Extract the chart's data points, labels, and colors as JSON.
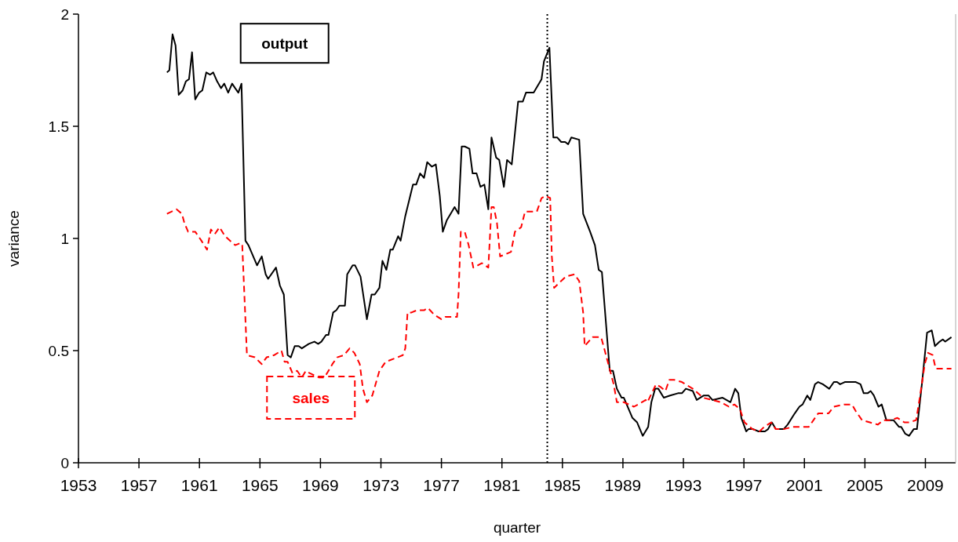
{
  "chart_data": {
    "type": "line",
    "xlabel": "quarter",
    "ylabel": "variance",
    "xlim": [
      1953,
      2011
    ],
    "xticks": [
      1953,
      1957,
      1961,
      1965,
      1969,
      1973,
      1977,
      1981,
      1985,
      1989,
      1993,
      1997,
      2001,
      2005,
      2009
    ],
    "ylim": [
      0,
      2
    ],
    "yticks": [
      0,
      {
        "value": 0.5,
        "label": "0.5"
      },
      1,
      {
        "value": 1.5,
        "label": "1.5"
      },
      2
    ],
    "grid": false,
    "marker": "none",
    "ref_lines": [
      {
        "axis": "x",
        "value": 1984,
        "color": "#000000",
        "line_style": "dotted"
      }
    ],
    "series": [
      {
        "name": "output",
        "color": "#000000",
        "line_style": "solid",
        "x": [
          1958.85,
          1959.01,
          1959.22,
          1959.42,
          1959.63,
          1959.89,
          1960.1,
          1960.31,
          1960.51,
          1960.72,
          1960.98,
          1961.19,
          1961.45,
          1961.7,
          1961.91,
          1962.17,
          1962.43,
          1962.64,
          1962.9,
          1963.16,
          1963.36,
          1963.57,
          1963.78,
          1964.04,
          1964.24,
          1964.81,
          1965.12,
          1965.38,
          1965.54,
          1966.06,
          1966.32,
          1966.58,
          1966.83,
          1967.04,
          1967.3,
          1967.56,
          1967.77,
          1968.23,
          1968.6,
          1968.85,
          1969.06,
          1969.37,
          1969.53,
          1969.84,
          1970.05,
          1970.25,
          1970.62,
          1970.77,
          1971.13,
          1971.29,
          1971.65,
          1972.07,
          1972.38,
          1972.59,
          1972.9,
          1973.1,
          1973.36,
          1973.62,
          1973.78,
          1974.14,
          1974.3,
          1974.61,
          1975.12,
          1975.33,
          1975.59,
          1975.85,
          1976.06,
          1976.37,
          1976.63,
          1976.89,
          1977.09,
          1977.35,
          1977.87,
          1978.13,
          1978.34,
          1978.54,
          1978.85,
          1979.06,
          1979.32,
          1979.58,
          1979.84,
          1980.1,
          1980.31,
          1980.62,
          1980.82,
          1981.13,
          1981.34,
          1981.65,
          1982.07,
          1982.38,
          1982.59,
          1983.1,
          1983.62,
          1983.78,
          1984.14,
          1984.4,
          1984.66,
          1984.92,
          1985.18,
          1985.38,
          1985.59,
          1986.11,
          1986.37,
          1986.83,
          1987.15,
          1987.4,
          1987.61,
          1988.13,
          1988.34,
          1988.6,
          1988.91,
          1989.06,
          1989.63,
          1989.94,
          1990.31,
          1990.67,
          1990.88,
          1991.13,
          1991.34,
          1991.7,
          1992.12,
          1992.64,
          1992.9,
          1993.16,
          1993.62,
          1993.88,
          1994.35,
          1994.66,
          1994.92,
          1995.59,
          1996.11,
          1996.42,
          1996.63,
          1996.83,
          1997.15,
          1997.3,
          1997.61,
          1997.97,
          1998.39,
          1998.6,
          1998.85,
          1999.11,
          1999.63,
          1999.89,
          2000.36,
          2000.67,
          2000.88,
          2001.19,
          2001.39,
          2001.7,
          2001.91,
          2002.22,
          2002.64,
          2002.95,
          2003.16,
          2003.36,
          2003.67,
          2004.4,
          2004.71,
          2004.92,
          2005.18,
          2005.38,
          2005.59,
          2005.9,
          2006.11,
          2006.42,
          2006.89,
          2007.25,
          2007.4,
          2007.66,
          2007.92,
          2008.23,
          2008.44,
          2008.8,
          2009.11,
          2009.42,
          2009.63,
          2009.94,
          2010.15,
          2010.31,
          2010.72
        ],
        "values": [
          1.74,
          1.75,
          1.91,
          1.86,
          1.64,
          1.66,
          1.7,
          1.71,
          1.83,
          1.62,
          1.65,
          1.66,
          1.74,
          1.73,
          1.74,
          1.7,
          1.67,
          1.69,
          1.65,
          1.69,
          1.67,
          1.65,
          1.69,
          0.99,
          0.97,
          0.88,
          0.92,
          0.84,
          0.82,
          0.87,
          0.79,
          0.75,
          0.48,
          0.47,
          0.52,
          0.52,
          0.51,
          0.53,
          0.54,
          0.53,
          0.54,
          0.57,
          0.57,
          0.67,
          0.68,
          0.7,
          0.7,
          0.84,
          0.88,
          0.88,
          0.83,
          0.64,
          0.75,
          0.75,
          0.78,
          0.9,
          0.86,
          0.95,
          0.95,
          1.01,
          0.99,
          1.1,
          1.24,
          1.24,
          1.29,
          1.27,
          1.34,
          1.32,
          1.33,
          1.19,
          1.03,
          1.08,
          1.14,
          1.11,
          1.41,
          1.41,
          1.4,
          1.29,
          1.29,
          1.23,
          1.24,
          1.13,
          1.45,
          1.36,
          1.35,
          1.23,
          1.35,
          1.33,
          1.61,
          1.61,
          1.65,
          1.65,
          1.71,
          1.79,
          1.85,
          1.45,
          1.45,
          1.43,
          1.43,
          1.42,
          1.45,
          1.44,
          1.11,
          1.03,
          0.97,
          0.86,
          0.85,
          0.41,
          0.41,
          0.33,
          0.29,
          0.29,
          0.2,
          0.18,
          0.12,
          0.16,
          0.27,
          0.33,
          0.33,
          0.29,
          0.3,
          0.31,
          0.31,
          0.33,
          0.32,
          0.28,
          0.3,
          0.3,
          0.28,
          0.29,
          0.27,
          0.33,
          0.31,
          0.2,
          0.14,
          0.15,
          0.15,
          0.14,
          0.14,
          0.15,
          0.18,
          0.15,
          0.15,
          0.17,
          0.22,
          0.25,
          0.26,
          0.3,
          0.28,
          0.35,
          0.36,
          0.35,
          0.33,
          0.36,
          0.36,
          0.35,
          0.36,
          0.36,
          0.35,
          0.31,
          0.31,
          0.32,
          0.3,
          0.25,
          0.26,
          0.19,
          0.19,
          0.16,
          0.16,
          0.13,
          0.12,
          0.15,
          0.15,
          0.37,
          0.58,
          0.59,
          0.52,
          0.54,
          0.55,
          0.54,
          0.56
        ]
      },
      {
        "name": "sales",
        "color": "#ff0000",
        "line_style": "dashed",
        "x": [
          1958.85,
          1959.48,
          1959.84,
          1960.0,
          1960.25,
          1960.72,
          1961.13,
          1961.5,
          1961.76,
          1962.02,
          1962.33,
          1962.69,
          1963.36,
          1963.73,
          1963.83,
          1964.14,
          1964.66,
          1965.12,
          1965.44,
          1965.95,
          1966.42,
          1966.63,
          1966.83,
          1967.15,
          1967.46,
          1967.77,
          1968.03,
          1968.28,
          1968.91,
          1969.27,
          1969.79,
          1970.1,
          1970.56,
          1970.93,
          1971.24,
          1971.6,
          1971.81,
          1972.07,
          1972.43,
          1972.9,
          1973.31,
          1974.09,
          1974.45,
          1974.61,
          1974.76,
          1975.02,
          1975.38,
          1975.85,
          1976.11,
          1976.52,
          1976.99,
          1977.25,
          1978.03,
          1978.13,
          1978.28,
          1978.54,
          1978.8,
          1979.11,
          1979.68,
          1980.1,
          1980.31,
          1980.46,
          1980.67,
          1980.88,
          1981.6,
          1981.86,
          1982.27,
          1982.53,
          1983.31,
          1983.62,
          1983.88,
          1984.19,
          1984.3,
          1984.45,
          1984.76,
          1985.23,
          1985.8,
          1986.11,
          1986.37,
          1986.47,
          1986.99,
          1987.56,
          1987.92,
          1988.39,
          1988.6,
          1989.06,
          1989.73,
          1990.51,
          1990.62,
          1991.19,
          1991.45,
          1991.81,
          1992.07,
          1992.38,
          1992.9,
          1993.62,
          1994.3,
          1994.92,
          1995.49,
          1996.01,
          1996.37,
          1996.73,
          1997.04,
          1997.56,
          1998.03,
          1998.34,
          1998.8,
          1999.11,
          1999.63,
          2000.25,
          2001.29,
          2001.91,
          2002.59,
          2002.95,
          2003.62,
          2004.14,
          2004.4,
          2004.81,
          2005.33,
          2005.85,
          2006.21,
          2006.73,
          2007.15,
          2007.61,
          2007.92,
          2008.39,
          2008.65,
          2008.96,
          2009.17,
          2009.48,
          2009.68,
          2010.72
        ],
        "values": [
          1.11,
          1.13,
          1.11,
          1.07,
          1.03,
          1.03,
          0.99,
          0.95,
          1.04,
          1.02,
          1.05,
          1.01,
          0.97,
          0.98,
          0.97,
          0.48,
          0.47,
          0.44,
          0.47,
          0.48,
          0.5,
          0.45,
          0.45,
          0.4,
          0.41,
          0.38,
          0.41,
          0.4,
          0.38,
          0.38,
          0.44,
          0.47,
          0.48,
          0.51,
          0.49,
          0.44,
          0.33,
          0.27,
          0.3,
          0.41,
          0.45,
          0.47,
          0.48,
          0.51,
          0.67,
          0.67,
          0.68,
          0.68,
          0.69,
          0.66,
          0.64,
          0.65,
          0.65,
          0.75,
          1.03,
          1.03,
          0.97,
          0.87,
          0.89,
          0.87,
          1.14,
          1.14,
          1.07,
          0.92,
          0.94,
          1.03,
          1.05,
          1.12,
          1.12,
          1.18,
          1.19,
          1.18,
          0.92,
          0.78,
          0.8,
          0.83,
          0.84,
          0.81,
          0.67,
          0.52,
          0.56,
          0.56,
          0.47,
          0.35,
          0.27,
          0.27,
          0.25,
          0.28,
          0.27,
          0.35,
          0.34,
          0.32,
          0.37,
          0.37,
          0.36,
          0.33,
          0.29,
          0.28,
          0.27,
          0.25,
          0.26,
          0.24,
          0.18,
          0.15,
          0.14,
          0.16,
          0.18,
          0.15,
          0.15,
          0.16,
          0.16,
          0.22,
          0.22,
          0.25,
          0.26,
          0.26,
          0.23,
          0.19,
          0.18,
          0.17,
          0.19,
          0.19,
          0.2,
          0.18,
          0.18,
          0.19,
          0.3,
          0.44,
          0.49,
          0.48,
          0.42,
          0.42
        ]
      }
    ]
  }
}
